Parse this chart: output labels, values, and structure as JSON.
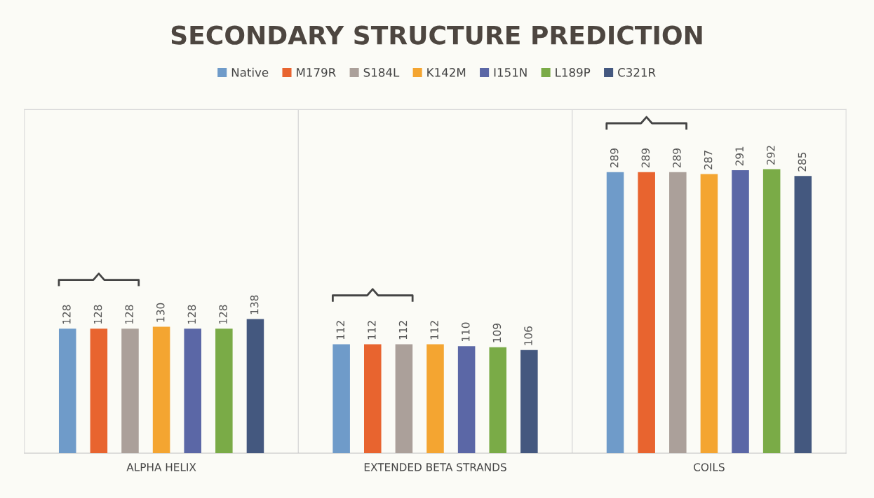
{
  "chart_data": {
    "type": "bar",
    "title": "SECONDARY STRUCTURE PREDICTION",
    "categories": [
      "ALPHA HELIX",
      "EXTENDED BETA STRANDS",
      "COILS"
    ],
    "series": [
      {
        "name": "Native",
        "color": "#6f9bc9",
        "values": [
          128,
          112,
          289
        ]
      },
      {
        "name": "M179R",
        "color": "#e8642f",
        "values": [
          128,
          112,
          289
        ]
      },
      {
        "name": "S184L",
        "color": "#aba09a",
        "values": [
          128,
          112,
          289
        ]
      },
      {
        "name": "K142M",
        "color": "#f4a531",
        "values": [
          130,
          112,
          287
        ]
      },
      {
        "name": "I151N",
        "color": "#5b67a6",
        "values": [
          128,
          110,
          291
        ]
      },
      {
        "name": "L189P",
        "color": "#7aab47",
        "values": [
          128,
          109,
          292
        ]
      },
      {
        "name": "C321R",
        "color": "#44587f",
        "values": [
          138,
          106,
          285
        ]
      }
    ],
    "data_labels": true,
    "legend": "top",
    "grid": "x",
    "tick_labels": "x"
  }
}
